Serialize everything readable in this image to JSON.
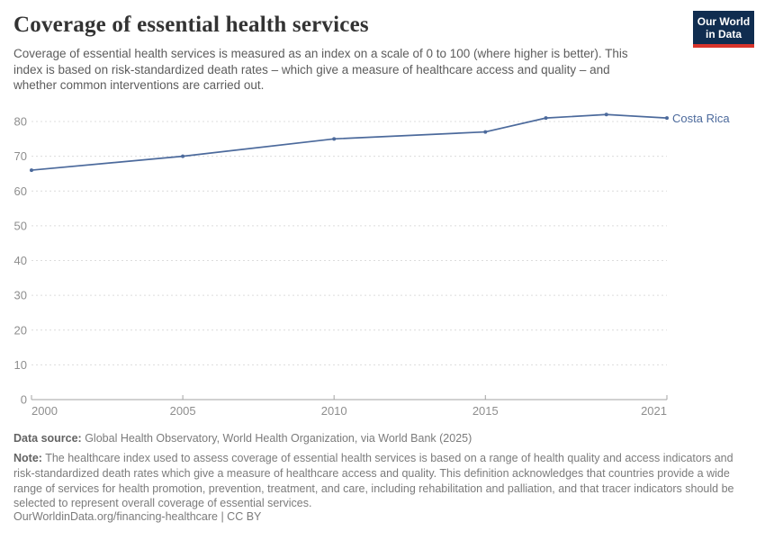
{
  "header": {
    "title": "Coverage of essential health services",
    "subtitle": "Coverage of essential health services is measured as an index on a scale of 0 to 100 (where higher is better). This index is based on risk-standardized death rates – which give a measure of healthcare access and quality – and whether common interventions are carried out."
  },
  "logo": {
    "line1": "Our World",
    "line2": "in Data",
    "bg_color": "#102d50",
    "accent_color": "#d8342b"
  },
  "chart_data": {
    "type": "line",
    "title": "Coverage of essential health services",
    "entity": "Costa Rica",
    "x": [
      2000,
      2005,
      2010,
      2015,
      2017,
      2019,
      2021
    ],
    "values": [
      66,
      70,
      75,
      77,
      81,
      82,
      81
    ],
    "xlim": [
      2000,
      2021
    ],
    "ylim": [
      0,
      80
    ],
    "yticks": [
      0,
      10,
      20,
      30,
      40,
      50,
      60,
      70,
      80
    ],
    "xticks": [
      2000,
      2005,
      2010,
      2015,
      2021
    ],
    "xlabel": "",
    "ylabel": "",
    "grid": "horizontal-dashed",
    "legend_position": "end-of-line",
    "line_color": "#4c6a9c",
    "grid_color": "#dcdcdc",
    "axis_color": "#a3a3a3",
    "tick_label_color": "#8e8e8e"
  },
  "footer": {
    "data_source_label": "Data source:",
    "data_source_text": " Global Health Observatory, World Health Organization, via World Bank (2025)",
    "note_label": "Note:",
    "note_text": " The healthcare index used to assess coverage of essential health services is based on a range of health quality and access indicators and risk-standardized death rates which give a measure of healthcare access and quality. This definition acknowledges that countries provide a wide range of services for health promotion, prevention, treatment, and care, including rehabilitation and palliation, and that tracer indicators should be selected to represent overall coverage of essential services.",
    "url": "OurWorldinData.org/financing-healthcare | CC BY"
  }
}
